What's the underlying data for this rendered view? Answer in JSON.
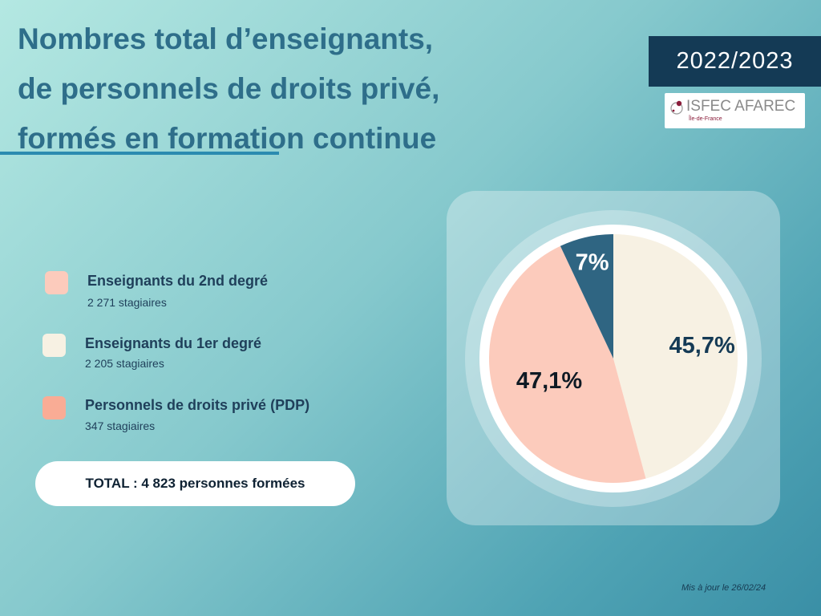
{
  "header": {
    "title_lines": [
      "Nombres total d’enseignants,",
      "de personnels de droits privé,",
      "formés en formation continue"
    ],
    "year": "2022/2023",
    "logo": {
      "name": "ISFEC AFAREC",
      "subtitle": "Île-de-France"
    }
  },
  "legend": [
    {
      "label": "Enseignants du 2nd degré",
      "sub": "2 271 stagiaires",
      "color": "#fccbbc"
    },
    {
      "label": "Enseignants du 1er degré",
      "sub": "2 205 stagiaires",
      "color": "#f7f1e3"
    },
    {
      "label": "Personnels de droits privé (PDP)",
      "sub": "347 stagiaires",
      "color": "#f9ac95"
    }
  ],
  "total": "TOTAL : 4 823 personnes formées",
  "footer": {
    "updated": "Mis à jour le 26/02/24"
  },
  "chart_data": {
    "type": "pie",
    "slices": [
      {
        "value": 45.7,
        "label": "45,7%",
        "color": "#f7f1e3",
        "text_color": "#143a55"
      },
      {
        "value": 47.1,
        "label": "47,1%",
        "color": "#fccbbc",
        "text_color": "#0f1a24"
      },
      {
        "value": 7,
        "label": "7%",
        "color": "#2f6582",
        "text_color": "#ffffff"
      }
    ]
  }
}
